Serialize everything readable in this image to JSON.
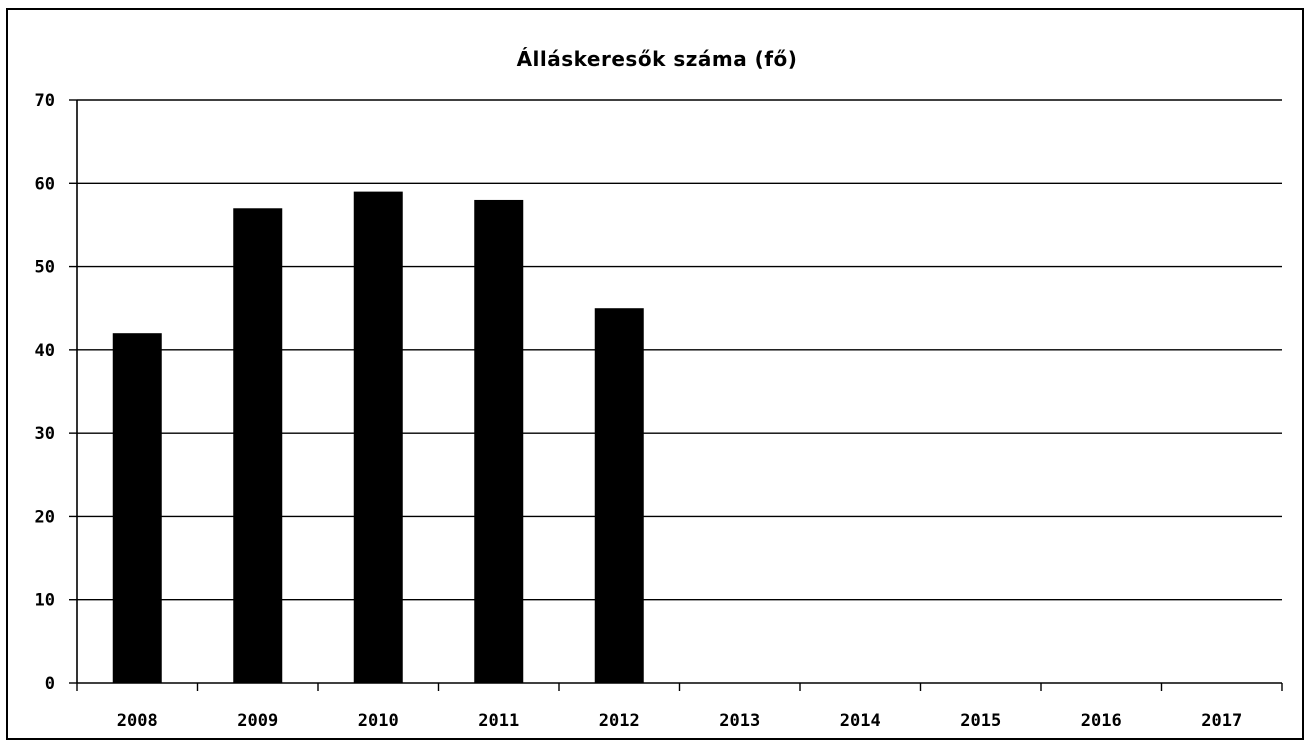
{
  "chart_data": {
    "type": "bar",
    "title": "Álláskeresők száma (fő)",
    "xlabel": "",
    "ylabel": "",
    "categories": [
      "2008",
      "2009",
      "2010",
      "2011",
      "2012",
      "2013",
      "2014",
      "2015",
      "2016",
      "2017"
    ],
    "values": [
      42,
      57,
      59,
      58,
      45,
      null,
      null,
      null,
      null,
      null
    ],
    "ylim": [
      0,
      70
    ],
    "yticks": [
      "0",
      "10",
      "20",
      "30",
      "40",
      "50",
      "60",
      "70"
    ],
    "grid": true,
    "legend": "none",
    "bar_color": "#000000"
  }
}
